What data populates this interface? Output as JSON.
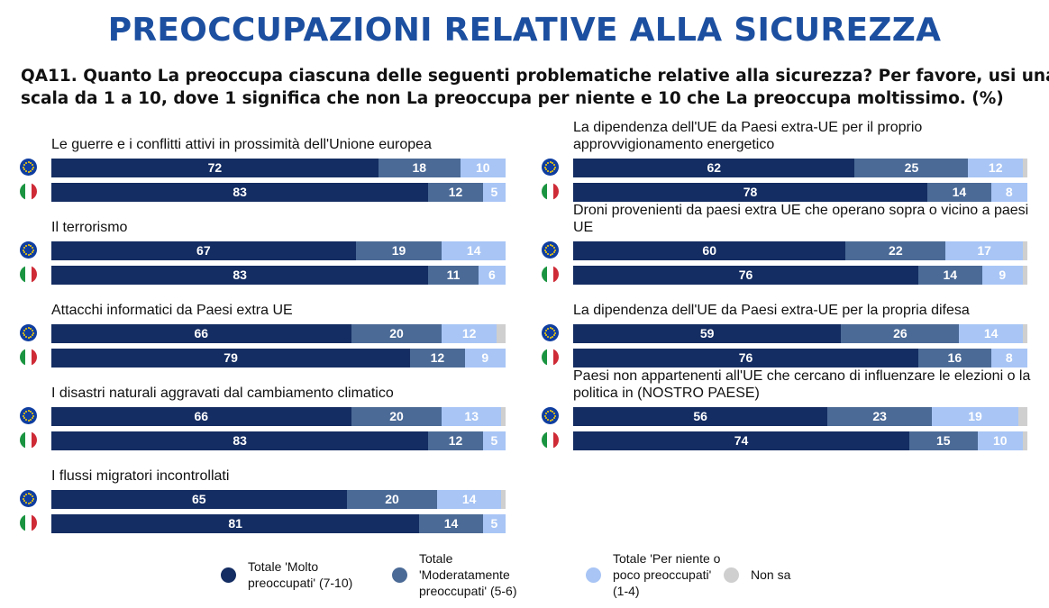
{
  "title": "PREOCCUPAZIONI RELATIVE ALLA SICUREZZA",
  "question": {
    "line1": "QA11. Quanto La preoccupa ciascuna delle seguenti problematiche relative alla sicurezza? Per favore, usi una",
    "line2": "scala da 1 a 10, dove 1 significa che non La preoccupa per niente e 10 che La preoccupa moltissimo. (%)"
  },
  "colors": {
    "molto": "#142d62",
    "moderatamente": "#4b6a96",
    "per_niente": "#a8c5f5",
    "non_sa": "#cfcfcf",
    "it_green": "#1a9440",
    "it_white": "#ffffff",
    "it_red": "#ce2b37"
  },
  "legend": [
    {
      "key": "molto",
      "label": "Totale 'Molto\npreoccupati' (7-10)"
    },
    {
      "key": "moderatamente",
      "label": "Totale\n'Moderatamente\npreoccupati' (5-6)"
    },
    {
      "key": "per_niente",
      "label": "Totale 'Per niente o\npoco preoccupati'\n(1-4)"
    },
    {
      "key": "non_sa",
      "label": "Non sa"
    }
  ],
  "flags": {
    "eu": "eu-flag-icon",
    "it": "italy-flag-icon"
  },
  "chart_data": {
    "type": "bar",
    "orientation": "horizontal-stacked-100",
    "series_names": [
      "Totale 'Molto preoccupati' (7-10)",
      "Totale 'Moderatamente preoccupati' (5-6)",
      "Totale 'Per niente o poco preoccupati' (1-4)",
      "Non sa"
    ],
    "columns": [
      {
        "side": "left",
        "items": [
          {
            "label": "Le guerre e i conflitti attivi in prossimità dell'Unione europea",
            "rows": [
              {
                "flag": "eu",
                "values": [
                  72,
                  18,
                  10,
                  0
                ]
              },
              {
                "flag": "it",
                "values": [
                  83,
                  12,
                  5,
                  0
                ]
              }
            ]
          },
          {
            "label": "Il terrorismo",
            "rows": [
              {
                "flag": "eu",
                "values": [
                  67,
                  19,
                  14,
                  0
                ]
              },
              {
                "flag": "it",
                "values": [
                  83,
                  11,
                  6,
                  0
                ]
              }
            ]
          },
          {
            "label": "Attacchi informatici da Paesi extra UE",
            "rows": [
              {
                "flag": "eu",
                "values": [
                  66,
                  20,
                  12,
                  2
                ]
              },
              {
                "flag": "it",
                "values": [
                  79,
                  12,
                  9,
                  0
                ]
              }
            ]
          },
          {
            "label": "I disastri naturali aggravati dal cambiamento climatico",
            "rows": [
              {
                "flag": "eu",
                "values": [
                  66,
                  20,
                  13,
                  1
                ]
              },
              {
                "flag": "it",
                "values": [
                  83,
                  12,
                  5,
                  0
                ]
              }
            ]
          },
          {
            "label": "I flussi migratori incontrollati",
            "rows": [
              {
                "flag": "eu",
                "values": [
                  65,
                  20,
                  14,
                  1
                ]
              },
              {
                "flag": "it",
                "values": [
                  81,
                  14,
                  5,
                  0
                ]
              }
            ]
          }
        ]
      },
      {
        "side": "right",
        "items": [
          {
            "label": "La dipendenza dell'UE da Paesi extra-UE per il proprio approvvigionamento energetico",
            "rows": [
              {
                "flag": "eu",
                "values": [
                  62,
                  25,
                  12,
                  1
                ]
              },
              {
                "flag": "it",
                "values": [
                  78,
                  14,
                  8,
                  0
                ]
              }
            ]
          },
          {
            "label": "Droni provenienti da paesi extra UE che operano sopra o vicino a paesi UE",
            "rows": [
              {
                "flag": "eu",
                "values": [
                  60,
                  22,
                  17,
                  1
                ]
              },
              {
                "flag": "it",
                "values": [
                  76,
                  14,
                  9,
                  1
                ]
              }
            ]
          },
          {
            "label": "La dipendenza dell'UE da Paesi extra-UE per la propria difesa",
            "rows": [
              {
                "flag": "eu",
                "values": [
                  59,
                  26,
                  14,
                  1
                ]
              },
              {
                "flag": "it",
                "values": [
                  76,
                  16,
                  8,
                  0
                ]
              }
            ]
          },
          {
            "label": "Paesi non appartenenti all'UE che cercano di influenzare le elezioni o la politica in (NOSTRO PAESE)",
            "rows": [
              {
                "flag": "eu",
                "values": [
                  56,
                  23,
                  19,
                  2
                ]
              },
              {
                "flag": "it",
                "values": [
                  74,
                  15,
                  10,
                  1
                ]
              }
            ]
          }
        ]
      }
    ]
  }
}
